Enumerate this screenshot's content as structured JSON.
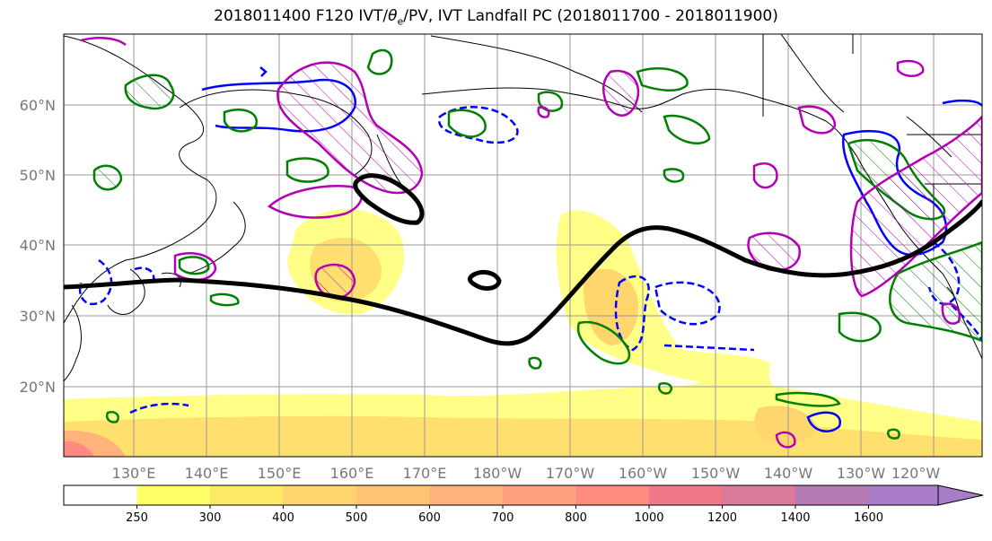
{
  "title_prefix": "2018011400 F120 IVT/",
  "title_theta": "θ",
  "title_sub": "e",
  "title_suffix": "/PV, IVT Landfall PC (2018011700 - 2018011900)",
  "lat_labels": [
    "60°N",
    "50°N",
    "40°N",
    "30°N",
    "20°N"
  ],
  "lon_labels": [
    "130°E",
    "140°E",
    "150°E",
    "160°E",
    "170°E",
    "180°W",
    "170°W",
    "160°W",
    "150°W",
    "140°W",
    "130°W",
    "120°W"
  ],
  "colorbar": {
    "ticks": [
      "250",
      "300",
      "400",
      "500",
      "600",
      "700",
      "800",
      "1000",
      "1200",
      "1400",
      "1600"
    ],
    "colors": [
      "#ffffff",
      "#ffff66",
      "#ffe866",
      "#ffd56e",
      "#ffc474",
      "#ffb27a",
      "#ffa07e",
      "#ff8a80",
      "#f07888",
      "#d97a9a",
      "#b47ab4",
      "#a87cc6"
    ]
  },
  "contour_colors": {
    "ivt_fill": "#ffe866",
    "theta_e": "#000000",
    "pv_positive": "#0000ff",
    "pv_green": "#008000",
    "pv_magenta": "#b400b4"
  }
}
